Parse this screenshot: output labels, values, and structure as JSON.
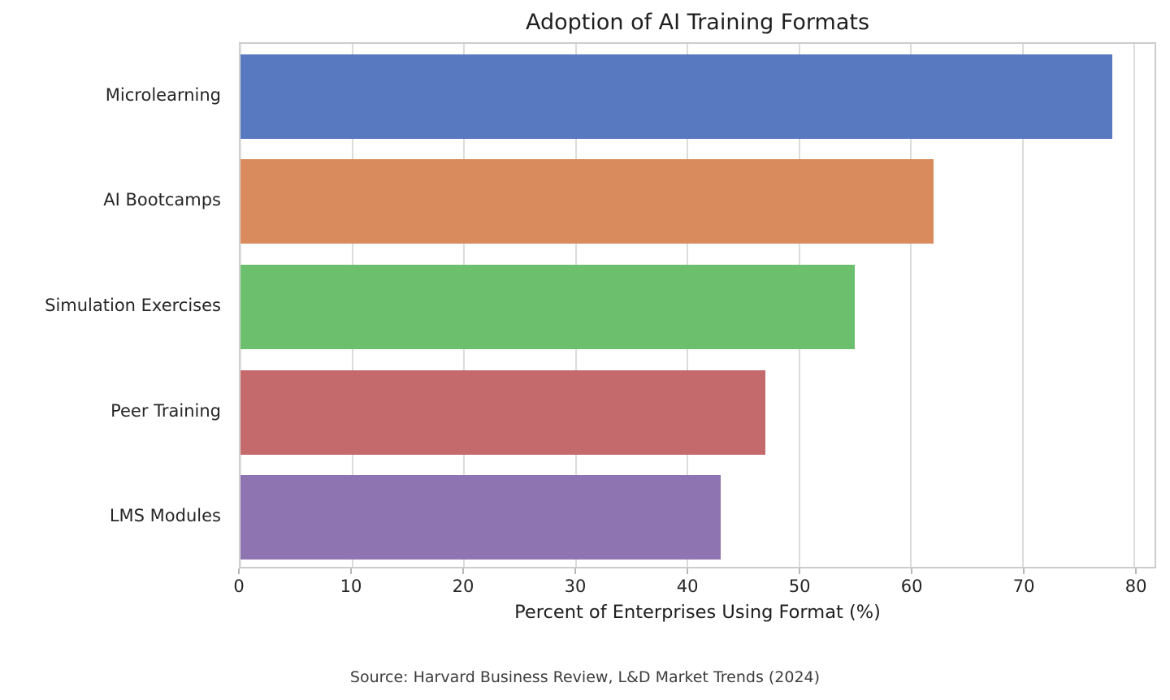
{
  "chart_data": {
    "type": "bar",
    "orientation": "horizontal",
    "title": "Adoption of AI Training Formats",
    "xlabel": "Percent of Enterprises Using Format (%)",
    "source_note": "Source: Harvard Business Review, L&D Market Trends (2024)",
    "categories": [
      "Microlearning",
      "AI Bootcamps",
      "Simulation Exercises",
      "Peer Training",
      "LMS Modules"
    ],
    "values": [
      78,
      62,
      55,
      47,
      43
    ],
    "bar_colors": [
      "#5879BF",
      "#D98B5E",
      "#6CBF6C",
      "#C46A6D",
      "#8E75B1"
    ],
    "xticks": [
      0,
      10,
      20,
      30,
      40,
      50,
      60,
      70,
      80
    ],
    "xlim": [
      0,
      81.8
    ],
    "grid": true,
    "legend": null
  }
}
